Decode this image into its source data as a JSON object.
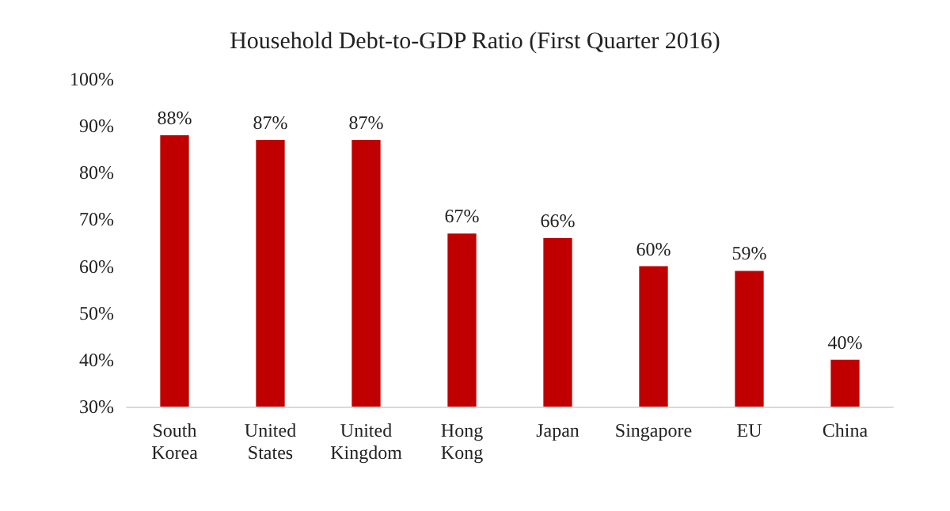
{
  "chart_data": {
    "type": "bar",
    "title": "Household Debt-to-GDP Ratio (First Quarter 2016)",
    "categories": [
      "South Korea",
      "United States",
      "United Kingdom",
      "Hong Kong",
      "Japan",
      "Singapore",
      "EU",
      "China"
    ],
    "values": [
      88,
      87,
      87,
      67,
      66,
      60,
      59,
      40
    ],
    "value_labels": [
      "88%",
      "87%",
      "87%",
      "67%",
      "66%",
      "60%",
      "59%",
      "40%"
    ],
    "color": "#c00000",
    "ylim": [
      30,
      100
    ],
    "yticks": [
      {
        "value": 30,
        "label": "30%"
      },
      {
        "value": 40,
        "label": "40%"
      },
      {
        "value": 50,
        "label": "50%"
      },
      {
        "value": 60,
        "label": "60%"
      },
      {
        "value": 70,
        "label": "70%"
      },
      {
        "value": 80,
        "label": "80%"
      },
      {
        "value": 90,
        "label": "90%"
      },
      {
        "value": 100,
        "label": "100%"
      }
    ],
    "grid": false
  }
}
